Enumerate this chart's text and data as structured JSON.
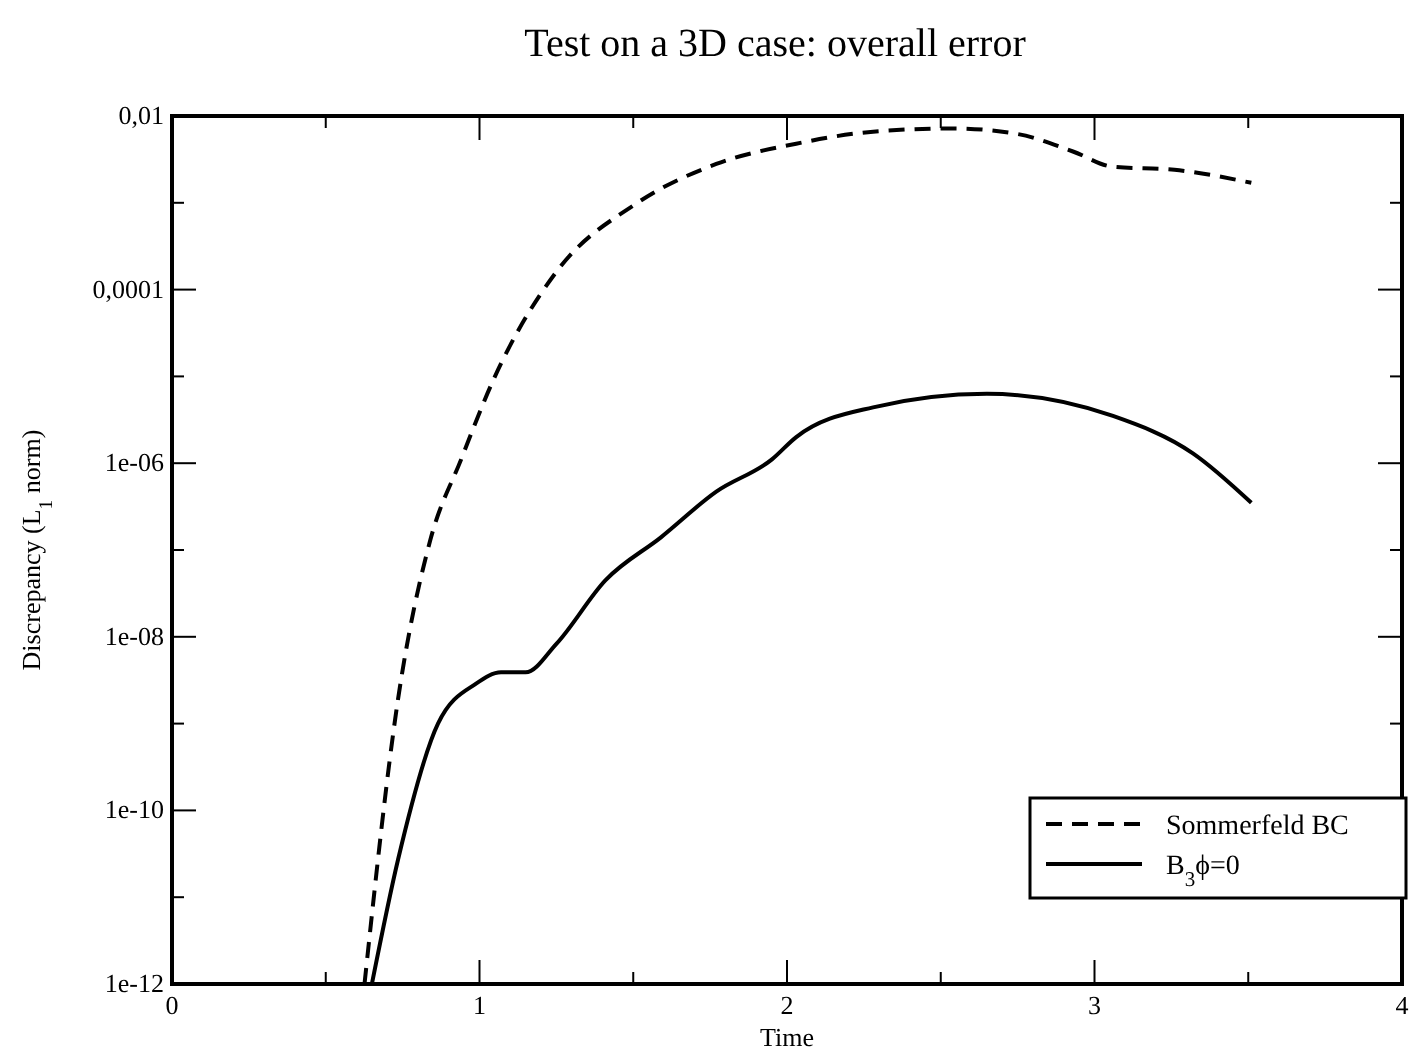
{
  "chart_data": {
    "type": "line",
    "title": "Test on a 3D case: overall error",
    "xlabel": "Time",
    "ylabel": "Discrepancy (L$_{1}$ norm)",
    "log": "y",
    "xlim": [
      0,
      4
    ],
    "ylim": [
      1e-12,
      0.01
    ],
    "xticks": [
      0,
      {
        "value": 0.5,
        "label": null
      },
      1,
      {
        "value": 1.5,
        "label": null
      },
      2,
      {
        "value": 2.5,
        "label": null
      },
      3,
      {
        "value": 3.5,
        "label": null
      },
      4
    ],
    "yticks": [
      {
        "value": 1e-12,
        "label": "1e-12"
      },
      {
        "value": 1e-11,
        "label": null
      },
      {
        "value": 1e-10,
        "label": "1e-10"
      },
      {
        "value": 1e-09,
        "label": null
      },
      {
        "value": 1e-08,
        "label": "1e-08"
      },
      {
        "value": 1e-07,
        "label": null
      },
      {
        "value": 1e-06,
        "label": "1e-06"
      },
      {
        "value": 1e-05,
        "label": null
      },
      {
        "value": 0.0001,
        "label": "0,0001"
      },
      {
        "value": 0.001,
        "label": null
      },
      {
        "value": 0.01,
        "label": "0,01"
      }
    ],
    "grid": false,
    "legend": "bottom right",
    "series": [
      {
        "name": "Sommerfeld BC",
        "color": "#000000",
        "line_style": "dashed",
        "x": [
          0.626,
          0.735,
          0.84,
          0.94,
          1.045,
          1.25,
          1.51,
          1.77,
          2.03,
          2.28,
          2.54,
          2.75,
          2.93,
          3.06,
          3.26,
          3.51
        ],
        "values": [
          1e-12,
          1.9e-09,
          1.3e-07,
          1.1e-06,
          9.1e-06,
          0.00016,
          0.00098,
          0.0028,
          0.0048,
          0.0066,
          0.0072,
          0.0062,
          0.0039,
          0.0026,
          0.0024,
          0.0017
        ]
      },
      {
        "name": "B$_{3}$ϕ=0",
        "color": "#000000",
        "line_style": "solid",
        "x": [
          0.65,
          0.735,
          0.865,
          0.99,
          1.07,
          1.15,
          1.25,
          1.41,
          1.59,
          1.77,
          1.95,
          2.03,
          2.28,
          2.65,
          3.06,
          3.32,
          3.51
        ],
        "values": [
          1e-12,
          2.7e-11,
          1e-09,
          2.9e-09,
          3.9e-09,
          3.9e-09,
          8.3e-09,
          4.5e-08,
          1.4e-07,
          4.7e-07,
          1.1e-06,
          2e-06,
          4.4e-06,
          6.3e-06,
          3.5e-06,
          1.3e-06,
          3.5e-07
        ]
      }
    ]
  }
}
